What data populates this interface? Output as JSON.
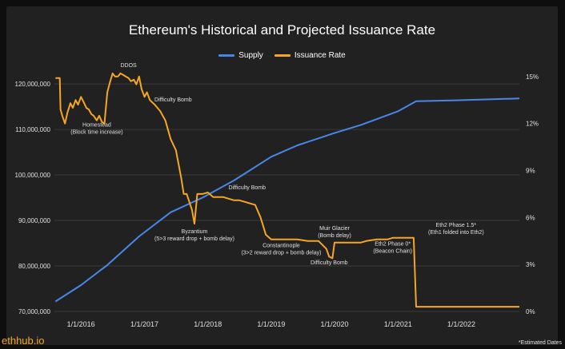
{
  "chart_data": {
    "type": "line",
    "title": "Ethereum's Historical and Projected Issuance Rate",
    "colors": {
      "supply": "#4a86e8",
      "issuance": "#f5a623",
      "grid": "#3a3a3a",
      "text": "#e0e0e0"
    },
    "left_axis": {
      "ylim": [
        70000000,
        123000000
      ],
      "ticks": [
        70000000,
        80000000,
        90000000,
        100000000,
        110000000,
        120000000
      ],
      "tick_labels": [
        "70,000,000",
        "80,000,000",
        "90,000,000",
        "100,000,000",
        "110,000,000",
        "120,000,000"
      ]
    },
    "right_axis": {
      "ylim": [
        0,
        15.4
      ],
      "ticks": [
        0,
        3,
        6,
        9,
        12,
        15
      ],
      "tick_labels": [
        "0%",
        "3%",
        "6%",
        "9%",
        "12%",
        "15%"
      ]
    },
    "x_axis": {
      "xlim": [
        "2015-08-01",
        "2022-12-01"
      ],
      "ticks": [
        "2016-01-01",
        "2017-01-01",
        "2018-01-01",
        "2019-01-01",
        "2020-01-01",
        "2021-01-01",
        "2022-01-01"
      ],
      "tick_labels": [
        "1/1/2016",
        "1/1/2017",
        "1/1/2018",
        "1/1/2019",
        "1/1/2020",
        "1/1/2021",
        "1/1/2022"
      ]
    },
    "grid": true,
    "legend_position": "top-center",
    "series": [
      {
        "name": "Supply",
        "axis": "left",
        "points": [
          [
            "2015-08-07",
            72200000
          ],
          [
            "2016-01-01",
            75800000
          ],
          [
            "2016-06-01",
            80200000
          ],
          [
            "2016-12-01",
            86500000
          ],
          [
            "2017-06-01",
            91800000
          ],
          [
            "2017-12-01",
            95000000
          ],
          [
            "2018-06-01",
            98800000
          ],
          [
            "2019-01-01",
            104000000
          ],
          [
            "2019-06-01",
            106500000
          ],
          [
            "2020-01-01",
            109200000
          ],
          [
            "2020-06-01",
            111000000
          ],
          [
            "2021-01-01",
            114000000
          ],
          [
            "2021-04-15",
            116200000
          ],
          [
            "2021-12-01",
            116400000
          ],
          [
            "2022-12-01",
            116800000
          ]
        ]
      },
      {
        "name": "Issuance Rate",
        "axis": "right",
        "points": [
          [
            "2015-08-07",
            14.9
          ],
          [
            "2015-09-01",
            14.9
          ],
          [
            "2015-09-05",
            12.9
          ],
          [
            "2015-09-15",
            12.5
          ],
          [
            "2015-10-01",
            12.0
          ],
          [
            "2015-10-15",
            12.7
          ],
          [
            "2015-11-01",
            13.3
          ],
          [
            "2015-11-15",
            13.0
          ],
          [
            "2015-12-01",
            13.5
          ],
          [
            "2015-12-15",
            13.2
          ],
          [
            "2016-01-01",
            13.7
          ],
          [
            "2016-01-15",
            13.4
          ],
          [
            "2016-02-01",
            13.0
          ],
          [
            "2016-02-15",
            12.9
          ],
          [
            "2016-03-01",
            12.6
          ],
          [
            "2016-03-14",
            12.5
          ],
          [
            "2016-04-01",
            12.2
          ],
          [
            "2016-04-15",
            12.5
          ],
          [
            "2016-05-01",
            12.1
          ],
          [
            "2016-05-15",
            12.0
          ],
          [
            "2016-06-01",
            14.0
          ],
          [
            "2016-06-15",
            14.6
          ],
          [
            "2016-07-01",
            15.2
          ],
          [
            "2016-07-15",
            15.0
          ],
          [
            "2016-08-01",
            15.0
          ],
          [
            "2016-08-15",
            15.2
          ],
          [
            "2016-09-01",
            15.1
          ],
          [
            "2016-09-15",
            15.0
          ],
          [
            "2016-10-01",
            14.9
          ],
          [
            "2016-10-15",
            14.7
          ],
          [
            "2016-11-01",
            14.8
          ],
          [
            "2016-11-15",
            14.5
          ],
          [
            "2016-12-01",
            15.0
          ],
          [
            "2016-12-15",
            14.2
          ],
          [
            "2017-01-01",
            13.7
          ],
          [
            "2017-01-15",
            14.0
          ],
          [
            "2017-02-01",
            13.5
          ],
          [
            "2017-03-01",
            13.2
          ],
          [
            "2017-04-01",
            12.8
          ],
          [
            "2017-05-01",
            12.2
          ],
          [
            "2017-06-01",
            11.0
          ],
          [
            "2017-07-01",
            10.3
          ],
          [
            "2017-07-15",
            9.5
          ],
          [
            "2017-08-01",
            8.5
          ],
          [
            "2017-08-15",
            7.5
          ],
          [
            "2017-09-01",
            7.5
          ],
          [
            "2017-10-01",
            6.5
          ],
          [
            "2017-10-16",
            5.6
          ],
          [
            "2017-11-01",
            7.5
          ],
          [
            "2017-12-01",
            7.5
          ],
          [
            "2018-01-01",
            7.6
          ],
          [
            "2018-02-01",
            7.3
          ],
          [
            "2018-03-01",
            7.3
          ],
          [
            "2018-04-01",
            7.3
          ],
          [
            "2018-05-01",
            7.2
          ],
          [
            "2018-06-01",
            7.1
          ],
          [
            "2018-07-01",
            7.1
          ],
          [
            "2018-08-01",
            7.0
          ],
          [
            "2018-09-01",
            6.9
          ],
          [
            "2018-10-01",
            6.8
          ],
          [
            "2018-11-01",
            6.0
          ],
          [
            "2018-12-01",
            4.9
          ],
          [
            "2019-01-01",
            4.6
          ],
          [
            "2019-02-01",
            4.6
          ],
          [
            "2019-02-28",
            4.6
          ],
          [
            "2019-04-01",
            4.6
          ],
          [
            "2019-06-01",
            4.6
          ],
          [
            "2019-08-01",
            4.5
          ],
          [
            "2019-10-01",
            4.5
          ],
          [
            "2019-11-15",
            4.0
          ],
          [
            "2019-12-01",
            3.5
          ],
          [
            "2019-12-20",
            3.4
          ],
          [
            "2020-01-01",
            4.4
          ],
          [
            "2020-02-01",
            4.4
          ],
          [
            "2020-04-01",
            4.4
          ],
          [
            "2020-06-01",
            4.4
          ],
          [
            "2020-07-01",
            4.5
          ],
          [
            "2020-09-01",
            4.6
          ],
          [
            "2020-11-01",
            4.6
          ],
          [
            "2020-12-01",
            4.7
          ],
          [
            "2021-01-01",
            4.7
          ],
          [
            "2021-04-01",
            4.7
          ],
          [
            "2021-04-15",
            0.3
          ],
          [
            "2021-12-01",
            0.3
          ],
          [
            "2022-12-01",
            0.3
          ]
        ]
      }
    ],
    "annotations": [
      {
        "lines": [
          "DDOS"
        ],
        "date": "2016-10-01",
        "value": 15.6
      },
      {
        "lines": [
          "Homestead",
          "(Block time increase)"
        ],
        "date": "2016-04-01",
        "value": 11.8
      },
      {
        "lines": [
          "Difficulty Bomb"
        ],
        "date": "2017-06-15",
        "value": 13.4
      },
      {
        "lines": [
          "Byzantium",
          "(5>3 reward drop + bomb delay)"
        ],
        "date": "2017-10-16",
        "value": 5.0
      },
      {
        "lines": [
          "Difficulty Bomb"
        ],
        "date": "2018-08-15",
        "value": 7.8
      },
      {
        "lines": [
          "Constantinople",
          "(3>2 reward drop + bomb delay)"
        ],
        "date": "2019-02-28",
        "value": 4.1
      },
      {
        "lines": [
          "Difficulty Bomb"
        ],
        "date": "2019-12-01",
        "value": 3.0
      },
      {
        "lines": [
          "Muir Glacier",
          "(Bomb delay)"
        ],
        "date": "2020-01-01",
        "value": 5.2
      },
      {
        "lines": [
          "Eth2 Phase 0*",
          "(Beacon Chain)"
        ],
        "date": "2020-12-01",
        "value": 4.2
      },
      {
        "lines": [
          "Eth2 Phase 1.5*",
          "(Eth1 folded into Eth2)"
        ],
        "date": "2021-12-01",
        "value": 5.4
      }
    ]
  },
  "legend": {
    "supply_label": "Supply",
    "issuance_label": "Issuance Rate"
  },
  "footer": {
    "brand": "ethhub.io",
    "note": "*Estimated Dates"
  }
}
